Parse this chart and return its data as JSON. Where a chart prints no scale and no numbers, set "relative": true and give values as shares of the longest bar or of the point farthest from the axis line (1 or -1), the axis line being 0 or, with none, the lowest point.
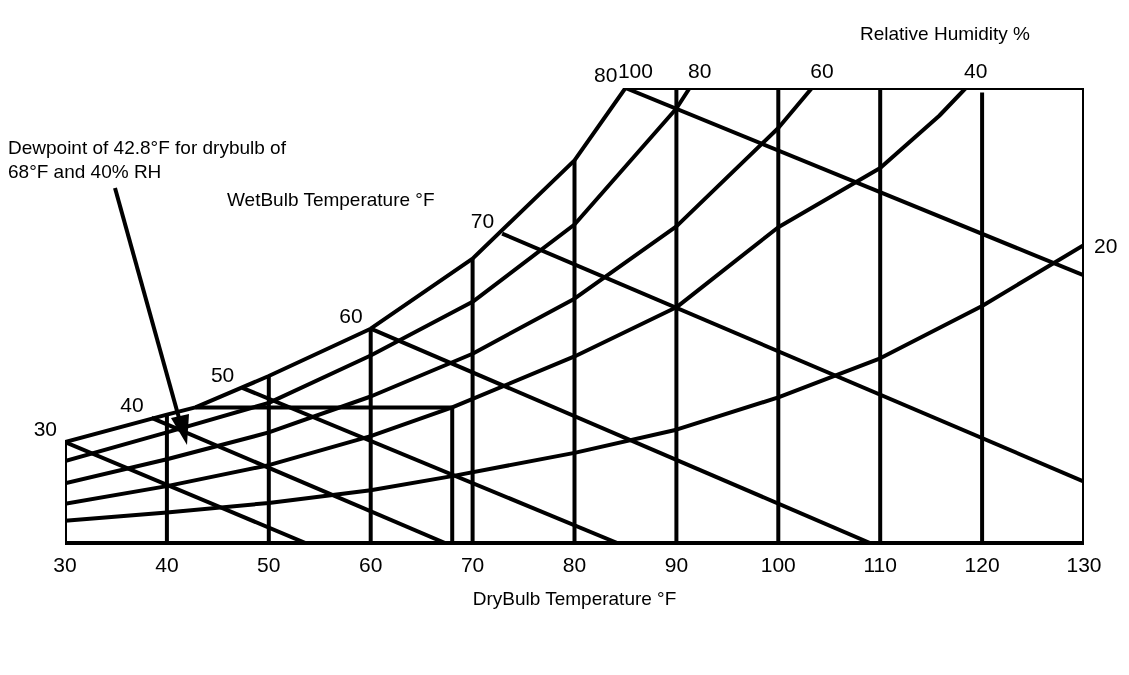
{
  "chart_data": {
    "type": "line",
    "relative": true,
    "xlabel": "DryBulb Temperature °F",
    "xlim": [
      30,
      130
    ],
    "xticks": [
      30,
      40,
      50,
      60,
      70,
      80,
      90,
      100,
      110,
      120,
      130
    ],
    "grid": false,
    "marker": "none",
    "line_style": "solid",
    "annotations": [
      "Dewpoint of 42.8°F for drybulb of 68°F and 40% RH",
      "WetBulb Temperature °F",
      "Relative Humidity %"
    ],
    "series": [
      {
        "name": "100",
        "color": "#000000",
        "x": [
          30,
          40,
          42.8,
          50,
          60,
          70,
          80,
          85
        ],
        "values": [
          0.222,
          0.282,
          0.298,
          0.367,
          0.471,
          0.625,
          0.841,
          1
        ]
      },
      {
        "name": "80",
        "color": "#000000",
        "x": [
          30,
          40,
          50,
          60,
          70,
          80,
          90,
          91.3
        ],
        "values": [
          0.18,
          0.243,
          0.308,
          0.412,
          0.53,
          0.7,
          0.955,
          1
        ]
      },
      {
        "name": "60",
        "color": "#000000",
        "x": [
          30,
          40,
          50,
          60,
          70,
          80,
          90,
          100,
          103.3
        ],
        "values": [
          0.131,
          0.184,
          0.243,
          0.322,
          0.416,
          0.537,
          0.696,
          0.912,
          1
        ]
      },
      {
        "name": "40",
        "color": "#000000",
        "x": [
          30,
          40,
          50,
          60,
          68,
          80,
          90,
          100,
          110,
          115.8,
          118.4
        ],
        "values": [
          0.086,
          0.125,
          0.171,
          0.235,
          0.298,
          0.41,
          0.518,
          0.694,
          0.824,
          0.939,
          1
        ]
      },
      {
        "name": "20",
        "color": "#000000",
        "x": [
          30,
          40,
          50,
          60,
          68,
          80,
          90,
          100,
          110,
          120,
          130
        ],
        "values": [
          0.049,
          0.067,
          0.088,
          0.116,
          0.147,
          0.198,
          0.249,
          0.32,
          0.406,
          0.521,
          0.655
        ]
      },
      {
        "name": "30",
        "color": "#000000",
        "x": [
          30,
          53.6
        ],
        "values": [
          0.222,
          0
        ]
      },
      {
        "name": "40",
        "color": "#000000",
        "x": [
          38.5,
          67.3
        ],
        "values": [
          0.275,
          0
        ]
      },
      {
        "name": "50",
        "color": "#000000",
        "x": [
          47.4,
          84.2
        ],
        "values": [
          0.341,
          0
        ]
      },
      {
        "name": "60",
        "color": "#000000",
        "x": [
          60,
          109
        ],
        "values": [
          0.471,
          0
        ]
      },
      {
        "name": "70",
        "color": "#000000",
        "x": [
          72.9,
          130
        ],
        "values": [
          0.68,
          0.135
        ]
      },
      {
        "name": "80",
        "color": "#000000",
        "x": [
          85,
          130
        ],
        "values": [
          1,
          0.588
        ]
      },
      {
        "color": "#000000",
        "x": [
          30,
          30
        ],
        "values": [
          0,
          0.222
        ]
      },
      {
        "color": "#000000",
        "x": [
          40,
          40
        ],
        "values": [
          0,
          0.282
        ]
      },
      {
        "color": "#000000",
        "x": [
          50,
          50
        ],
        "values": [
          0,
          0.367
        ]
      },
      {
        "color": "#000000",
        "x": [
          60,
          60
        ],
        "values": [
          0,
          0.471
        ]
      },
      {
        "color": "#000000",
        "x": [
          70,
          70
        ],
        "values": [
          0,
          0.625
        ]
      },
      {
        "color": "#000000",
        "x": [
          80,
          80
        ],
        "values": [
          0,
          0.841
        ]
      },
      {
        "color": "#000000",
        "x": [
          90,
          90
        ],
        "values": [
          0,
          1
        ]
      },
      {
        "color": "#000000",
        "x": [
          100,
          100
        ],
        "values": [
          0,
          1
        ]
      },
      {
        "color": "#000000",
        "x": [
          110,
          110
        ],
        "values": [
          0,
          1
        ]
      },
      {
        "color": "#000000",
        "x": [
          120,
          120
        ],
        "values": [
          0,
          0.99
        ]
      },
      {
        "color": "#000000",
        "x": [
          130,
          130
        ],
        "values": [
          0,
          1
        ]
      },
      {
        "color": "#000000",
        "x": [
          85,
          130
        ],
        "values": [
          1,
          1
        ]
      },
      {
        "color": "#000000",
        "x": [
          42.8,
          68
        ],
        "values": [
          0.298,
          0.298
        ]
      },
      {
        "color": "#000000",
        "x": [
          68,
          68
        ],
        "values": [
          0.298,
          0
        ]
      }
    ]
  }
}
